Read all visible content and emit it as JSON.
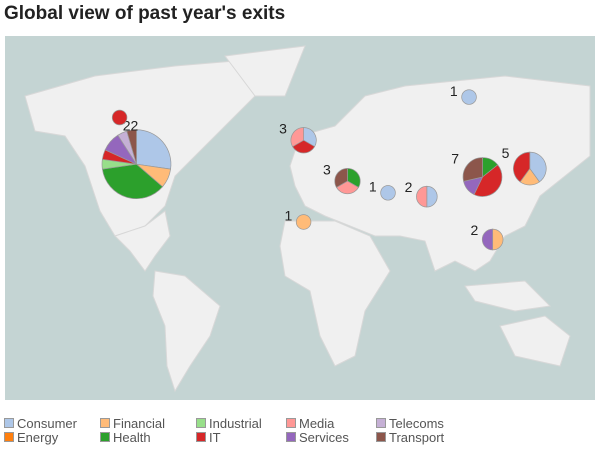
{
  "title": "Global view of past year's exits",
  "categories": [
    {
      "name": "Consumer",
      "color": "#aec7e8"
    },
    {
      "name": "Energy",
      "color": "#ff7f0e"
    },
    {
      "name": "Financial",
      "color": "#ffbb78"
    },
    {
      "name": "Health",
      "color": "#2ca02c"
    },
    {
      "name": "Industrial",
      "color": "#98df8a"
    },
    {
      "name": "IT",
      "color": "#d62728"
    },
    {
      "name": "Media",
      "color": "#ff9896"
    },
    {
      "name": "Services",
      "color": "#9467bd"
    },
    {
      "name": "Telecoms",
      "color": "#c5b0d5"
    },
    {
      "name": "Transport",
      "color": "#8c564b"
    }
  ],
  "legend": [
    "Consumer",
    "Energy",
    "Financial",
    "Health",
    "Industrial",
    "IT",
    "Media",
    "Services",
    "Telecoms",
    "Transport"
  ],
  "locations": [
    {
      "region": "United States",
      "label": "22",
      "lon": -95,
      "lat": 38,
      "counts": {
        "Consumer": 6,
        "Financial": 2,
        "Health": 8,
        "Industrial": 1,
        "IT": 1,
        "Services": 2,
        "Telecoms": 1,
        "Transport": 1
      }
    },
    {
      "region": "Canada",
      "label": "",
      "lon": -105,
      "lat": 56,
      "counts": {
        "IT": 1
      }
    },
    {
      "region": "Europe",
      "label": "3",
      "lon": 4,
      "lat": 48,
      "counts": {
        "Consumer": 1,
        "IT": 1,
        "Media": 1
      }
    },
    {
      "region": "Middle East",
      "label": "3",
      "lon": 30,
      "lat": 30,
      "counts": {
        "Health": 1,
        "Media": 1,
        "Transport": 1
      }
    },
    {
      "region": "UAE",
      "label": "1",
      "lon": 54,
      "lat": 24,
      "counts": {
        "Consumer": 1
      }
    },
    {
      "region": "India",
      "label": "2",
      "lon": 77,
      "lat": 22,
      "counts": {
        "Consumer": 1,
        "Media": 1
      }
    },
    {
      "region": "China",
      "label": "7",
      "lon": 110,
      "lat": 32,
      "counts": {
        "Health": 1,
        "IT": 3,
        "Services": 1,
        "Transport": 2
      }
    },
    {
      "region": "Japan",
      "label": "5",
      "lon": 138,
      "lat": 36,
      "counts": {
        "Consumer": 2,
        "Financial": 1,
        "IT": 2
      }
    },
    {
      "region": "Indonesia",
      "label": "2",
      "lon": 116,
      "lat": -2,
      "counts": {
        "Financial": 1,
        "Services": 1
      }
    },
    {
      "region": "Nigeria",
      "label": "1",
      "lon": 4,
      "lat": 8,
      "counts": {
        "Financial": 1
      }
    },
    {
      "region": "Russia",
      "label": "1",
      "lon": 102,
      "lat": 62,
      "counts": {
        "Consumer": 1
      }
    }
  ]
}
